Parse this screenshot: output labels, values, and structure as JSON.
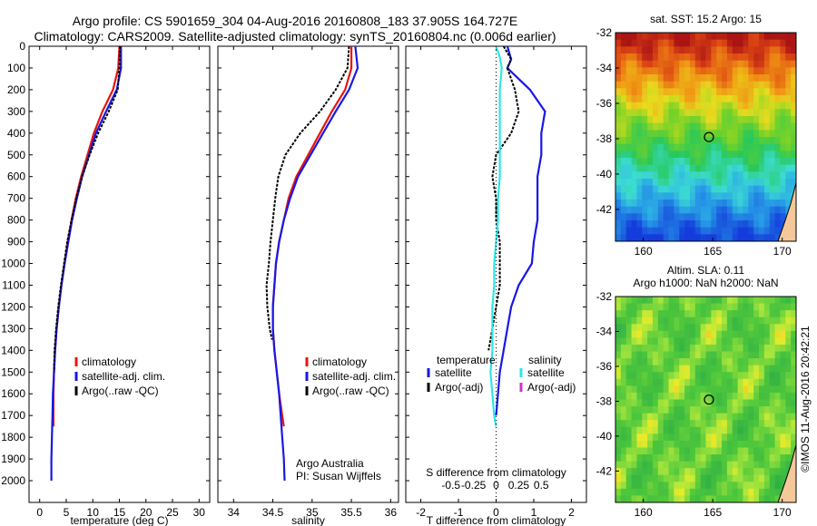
{
  "header": {
    "title_line1": "Argo profile: CS 5901659_304 04-Aug-2016 20160808_183 37.905S 164.727E",
    "title_line2": "Climatology: CARS2009. Satellite-adjusted climatology: synTS_20160804.nc (0.006d earlier)"
  },
  "colors": {
    "climatology": "#e8140c",
    "satellite": "#1818e6",
    "argo": "#000000",
    "salinity_satellite": "#2ee6e6",
    "argo_adj_salinity": "#cc33cc"
  },
  "chart_data": [
    {
      "id": "temperature",
      "type": "line",
      "xlabel": "temperature (deg C)",
      "ylabel": "",
      "xlim": [
        -2,
        32
      ],
      "ylim": [
        2100,
        0
      ],
      "xticks": [
        "0",
        "5",
        "10",
        "15",
        "20",
        "25",
        "30"
      ],
      "yticks": [
        "0",
        "100",
        "200",
        "300",
        "400",
        "500",
        "600",
        "700",
        "800",
        "900",
        "1000",
        "1100",
        "1200",
        "1300",
        "1400",
        "1500",
        "1600",
        "1700",
        "1800",
        "1900",
        "2000"
      ],
      "legend": {
        "position": "bottom-left",
        "entries": [
          "climatology",
          "satellite-adj. clim.",
          "Argo(..raw -QC)"
        ]
      },
      "series": [
        {
          "name": "climatology",
          "color_key": "climatology",
          "x": [
            15.0,
            14.8,
            13.8,
            11.8,
            10.2,
            9.0,
            7.8,
            6.8,
            6.0,
            5.3,
            4.7,
            4.1,
            3.6,
            3.2,
            2.9,
            2.7,
            2.6,
            2.6
          ],
          "y": [
            0,
            100,
            200,
            300,
            400,
            500,
            600,
            700,
            800,
            900,
            1000,
            1100,
            1200,
            1300,
            1400,
            1500,
            1600,
            1750
          ]
        },
        {
          "name": "satellite-adj. clim.",
          "color_key": "satellite",
          "x": [
            15.3,
            15.3,
            14.5,
            12.5,
            10.6,
            9.3,
            8.0,
            7.0,
            6.1,
            5.4,
            4.7,
            4.1,
            3.6,
            3.2,
            2.9,
            2.7,
            2.5,
            2.4,
            2.3,
            2.2,
            2.2
          ],
          "y": [
            0,
            100,
            200,
            300,
            400,
            500,
            600,
            700,
            800,
            900,
            1000,
            1100,
            1200,
            1300,
            1400,
            1500,
            1600,
            1700,
            1800,
            1900,
            2000
          ]
        },
        {
          "name": "Argo(..raw -QC)",
          "color_key": "argo",
          "x": [
            15.1,
            15.0,
            14.7,
            13.0,
            11.0,
            9.4,
            8.0,
            6.9,
            6.0,
            5.2,
            4.6,
            4.0,
            3.5,
            3.1,
            2.8,
            2.7
          ],
          "y": [
            0,
            100,
            200,
            300,
            400,
            500,
            600,
            700,
            800,
            900,
            1000,
            1100,
            1200,
            1300,
            1400,
            1500
          ]
        }
      ]
    },
    {
      "id": "salinity",
      "type": "line",
      "xlabel": "salinity",
      "ylabel": "",
      "xlim": [
        33.8,
        36.1
      ],
      "ylim": [
        2100,
        0
      ],
      "xticks": [
        "34",
        "34.5",
        "35",
        "35.5",
        "36"
      ],
      "legend": {
        "position": "bottom-left",
        "entries": [
          "climatology",
          "satellite-adj. clim.",
          "Argo(..raw -QC)"
        ]
      },
      "annotation": [
        "Argo Australia",
        "PI: Susan Wijffels"
      ],
      "series": [
        {
          "name": "climatology",
          "color_key": "climatology",
          "x": [
            35.5,
            35.5,
            35.42,
            35.25,
            35.1,
            34.95,
            34.8,
            34.7,
            34.64,
            34.58,
            34.54,
            34.52,
            34.5,
            34.5,
            34.52,
            34.55,
            34.58,
            34.62,
            34.64
          ],
          "y": [
            0,
            100,
            200,
            300,
            400,
            500,
            600,
            700,
            800,
            900,
            1000,
            1100,
            1200,
            1300,
            1400,
            1500,
            1600,
            1700,
            1750
          ]
        },
        {
          "name": "satellite-adj. clim.",
          "color_key": "satellite",
          "x": [
            35.55,
            35.58,
            35.47,
            35.3,
            35.14,
            34.98,
            34.82,
            34.72,
            34.64,
            34.58,
            34.54,
            34.52,
            34.5,
            34.5,
            34.52,
            34.55,
            34.58,
            34.6,
            34.62,
            34.64,
            34.65
          ],
          "y": [
            0,
            100,
            200,
            300,
            400,
            500,
            600,
            700,
            800,
            900,
            1000,
            1100,
            1200,
            1300,
            1400,
            1500,
            1600,
            1700,
            1800,
            1900,
            2000
          ]
        },
        {
          "name": "Argo(..raw -QC)",
          "color_key": "argo",
          "x": [
            35.47,
            35.45,
            35.3,
            35.1,
            34.85,
            34.66,
            34.57,
            34.53,
            34.5,
            34.47,
            34.45,
            34.42,
            34.43,
            34.46,
            34.49
          ],
          "y": [
            0,
            100,
            200,
            300,
            400,
            500,
            600,
            700,
            800,
            900,
            1000,
            1100,
            1200,
            1300,
            1350
          ]
        }
      ]
    },
    {
      "id": "difference",
      "type": "line",
      "xlabel": "T difference from climatology",
      "xlabel_top": "S difference from climatology",
      "xlim": [
        -2.4,
        2.4
      ],
      "ylim": [
        2100,
        0
      ],
      "xticks": [
        "-2",
        "-1",
        "0",
        "1",
        "2"
      ],
      "xticks_s": [
        "-0.5",
        "-0.25",
        "0",
        "0.25",
        "0.5"
      ],
      "legend": {
        "position": "bottom",
        "headers": [
          "temperature",
          "salinity"
        ],
        "entries": [
          "satellite",
          "Argo(-adj)",
          "satellite",
          "Argo(-adj)"
        ]
      },
      "series": [
        {
          "name": "temperature satellite",
          "color_key": "satellite",
          "x": [
            0.3,
            0.4,
            0.3,
            0.9,
            1.3,
            1.2,
            1.2,
            1.1,
            1.1,
            1.1,
            1.0,
            0.95,
            0.6,
            0.4,
            0.3,
            0.2,
            0.1,
            0.05,
            0.0
          ],
          "y": [
            0,
            60,
            100,
            200,
            300,
            400,
            500,
            600,
            700,
            800,
            900,
            1000,
            1100,
            1200,
            1300,
            1400,
            1500,
            1600,
            1700
          ]
        },
        {
          "name": "temperature Argo(-adj)",
          "color_key": "argo",
          "x": [
            0.2,
            0.4,
            0.3,
            0.5,
            0.6,
            0.4,
            0.0,
            -0.1,
            0.0,
            0.0,
            0.1,
            0.1,
            0.1,
            0.0,
            -0.1,
            -0.2
          ],
          "y": [
            0,
            60,
            100,
            200,
            300,
            400,
            500,
            600,
            700,
            800,
            900,
            1000,
            1100,
            1200,
            1300,
            1400
          ]
        },
        {
          "name": "salinity satellite",
          "color_key": "salinity_satellite",
          "x": [
            0.0,
            0.1,
            0.15,
            0.1,
            0.1,
            0.1,
            0.1,
            0.1,
            0.05,
            0.05,
            0.0,
            -0.05,
            -0.05,
            -0.1,
            -0.1,
            -0.1,
            -0.15,
            -0.1,
            -0.05,
            0.0
          ],
          "y": [
            0,
            50,
            100,
            200,
            300,
            400,
            500,
            600,
            700,
            800,
            900,
            1000,
            1100,
            1200,
            1300,
            1400,
            1500,
            1600,
            1700,
            1750
          ]
        }
      ]
    },
    {
      "id": "sst_map",
      "type": "heatmap",
      "title": "sat. SST: 15.2  Argo: 15",
      "xlim": [
        158,
        171
      ],
      "ylim": [
        -43.8,
        -32
      ],
      "xticks": [
        "160",
        "165",
        "170"
      ],
      "yticks": [
        "-32",
        "-34",
        "-36",
        "-38",
        "-40",
        "-42"
      ],
      "marker": {
        "lon": 164.727,
        "lat": -37.905
      }
    },
    {
      "id": "sla_map",
      "type": "heatmap",
      "title": "Altim. SLA: 0.11",
      "subtitle": "Argo h1000: NaN h2000: NaN",
      "xlim": [
        158,
        171
      ],
      "ylim": [
        -43.8,
        -32
      ],
      "xticks": [
        "160",
        "165",
        "170"
      ],
      "yticks": [
        "-32",
        "-34",
        "-36",
        "-38",
        "-40",
        "-42"
      ],
      "marker": {
        "lon": 164.727,
        "lat": -37.905
      }
    }
  ],
  "footer": {
    "watermark": "©IMOS 11-Aug-2016 20:42:21"
  }
}
